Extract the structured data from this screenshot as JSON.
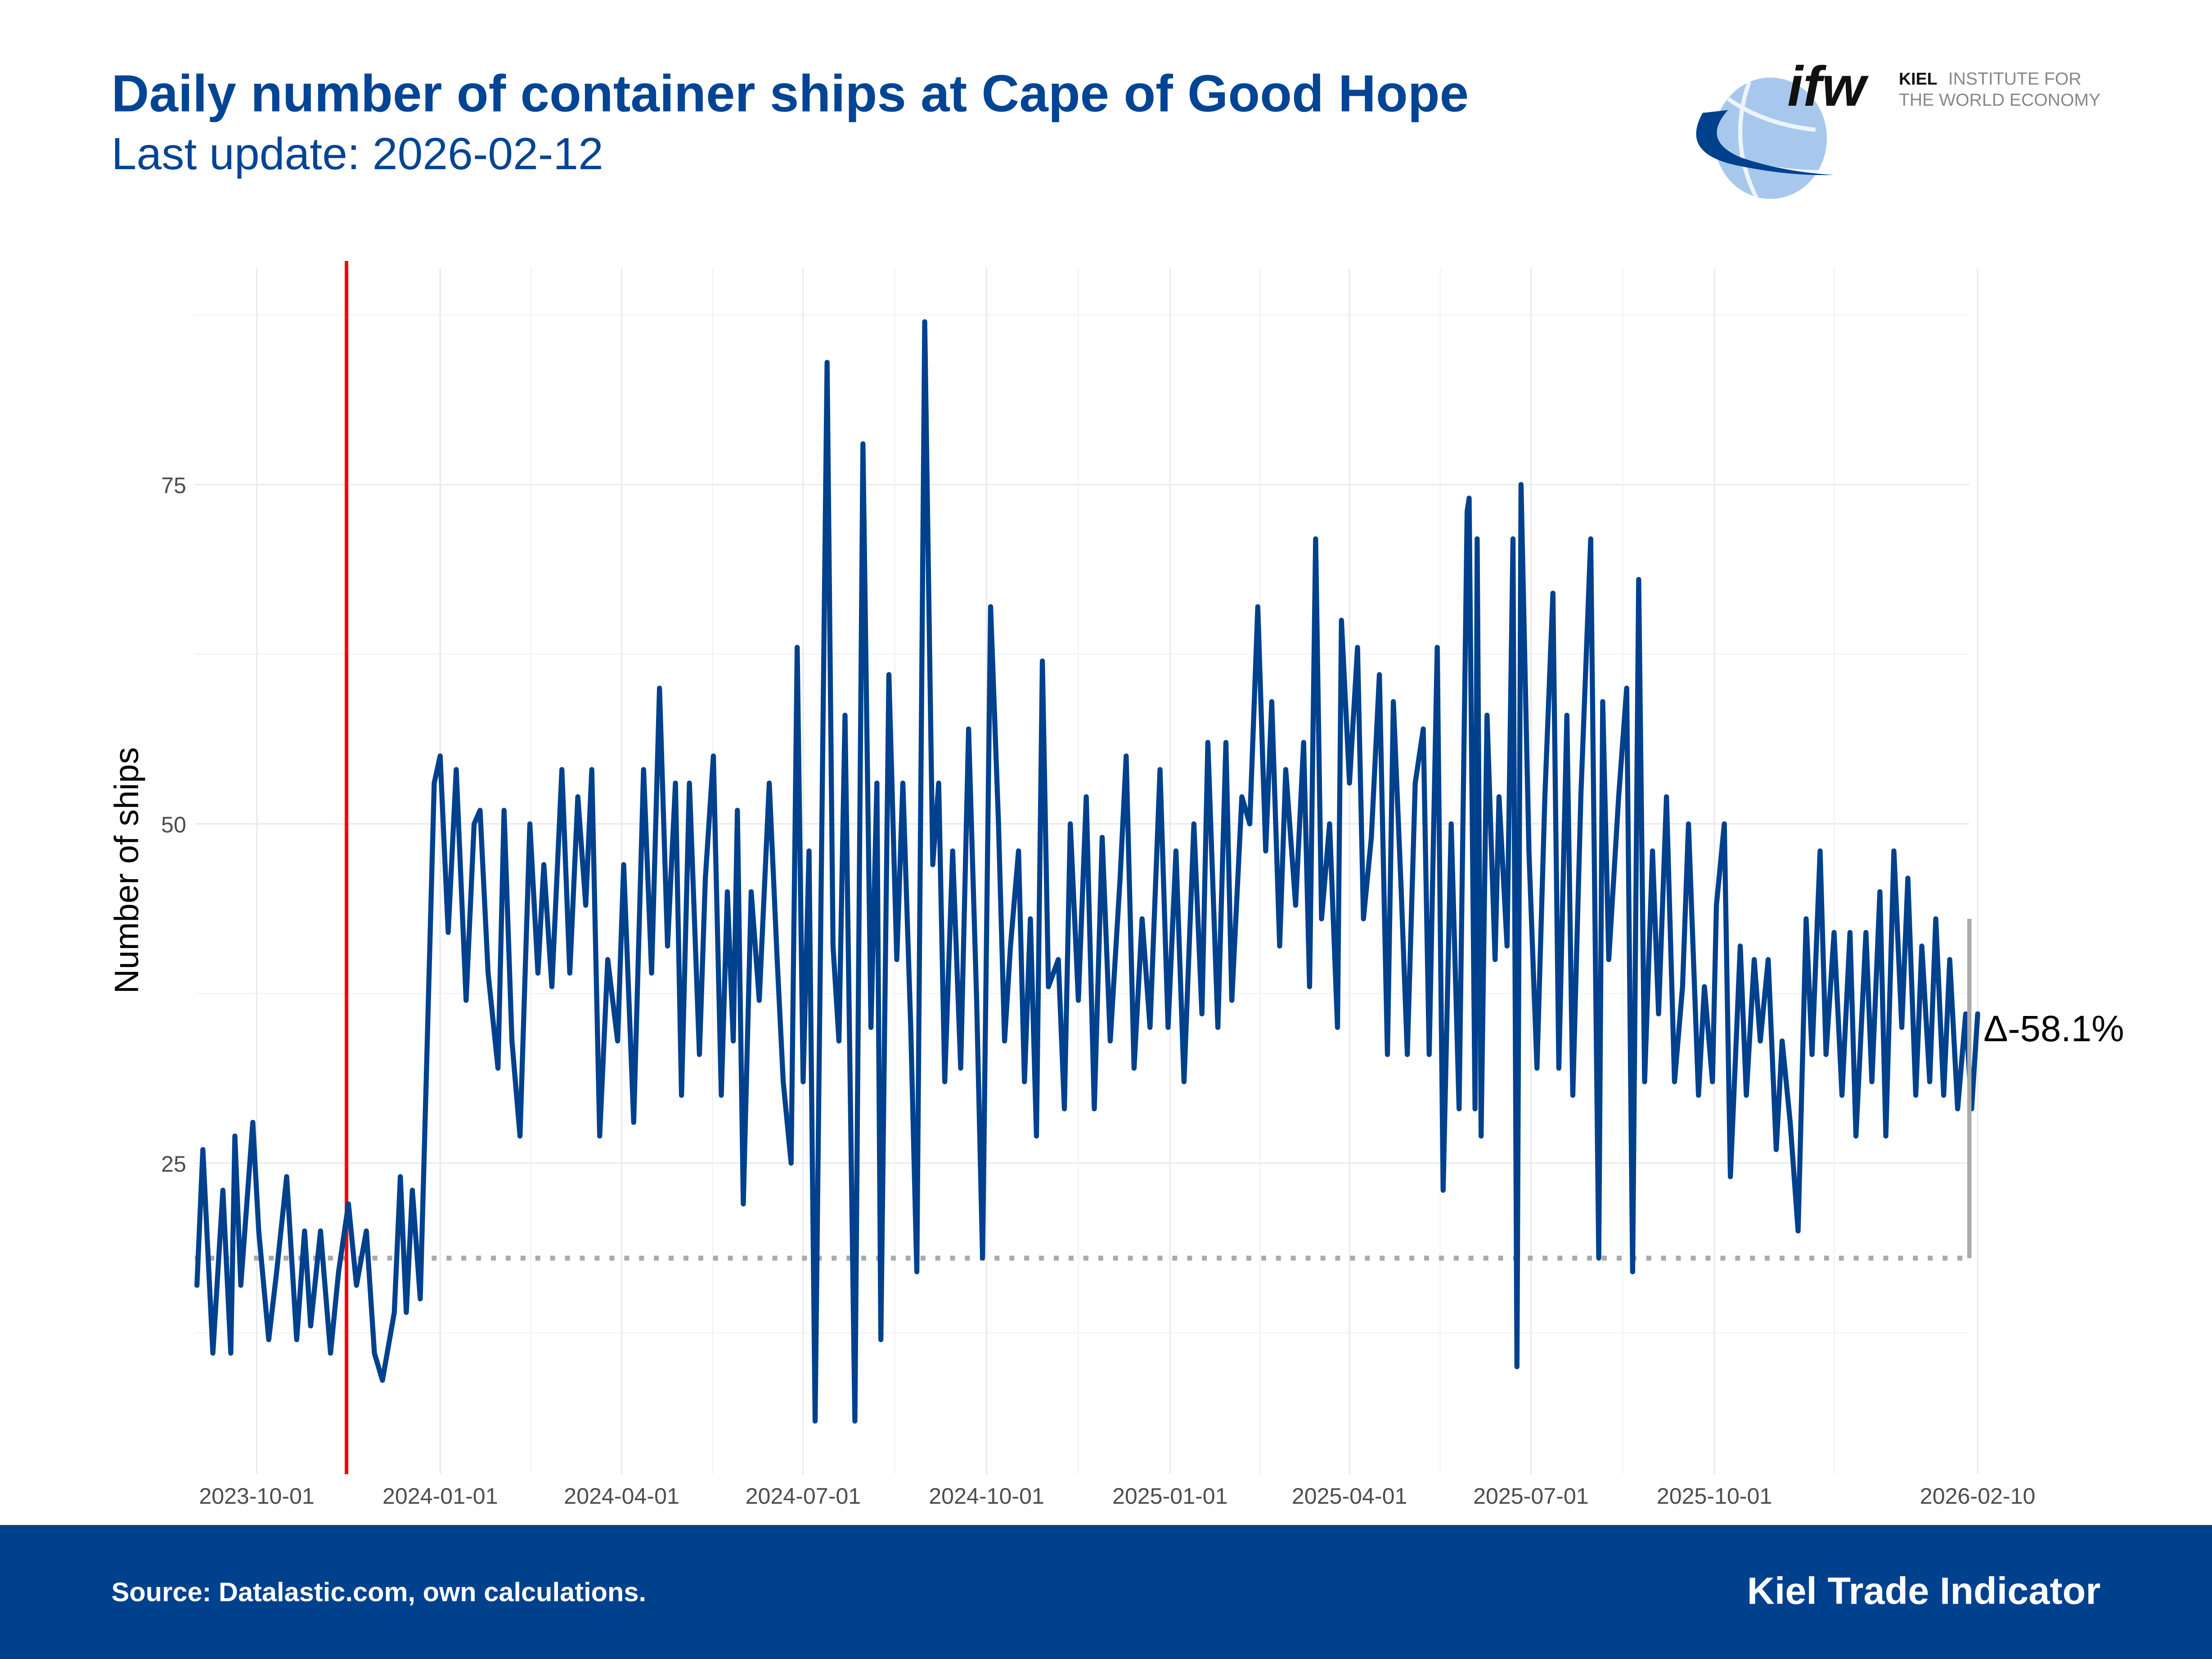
{
  "header": {
    "title": "Daily number of container ships at Cape of Good Hope",
    "subtitle": "Last update: 2026-02-12"
  },
  "logo": {
    "mark": "ifw",
    "line1_bold": "KIEL",
    "line1_rest": "INSTITUTE FOR",
    "line2": "THE WORLD ECONOMY"
  },
  "footer": {
    "source": "Source: Datalastic.com, own calculations.",
    "brand": "Kiel Trade Indicator"
  },
  "colors": {
    "series": "#00418E",
    "event_line": "#FF0000",
    "baseline": "#AAAAAA",
    "title": "#004494",
    "footer_bg": "#00418E"
  },
  "chart_data": {
    "type": "line",
    "title": "Daily number of container ships at Cape of Good Hope",
    "xlabel": "",
    "ylabel": "Number of ships",
    "x_ticks": [
      "2023-10-01",
      "2024-01-01",
      "2024-04-01",
      "2024-07-01",
      "2024-10-01",
      "2025-01-01",
      "2025-04-01",
      "2025-07-01",
      "2025-10-01",
      "2026-02-10"
    ],
    "y_ticks": [
      25,
      50,
      75
    ],
    "xlim": [
      "2023-09-01",
      "2026-02-10"
    ],
    "ylim": [
      5,
      88
    ],
    "grid": true,
    "event_line_date": "2023-11-15",
    "baseline_value": 18,
    "delta_reference_value": 43,
    "delta_label": "Δ-58.1%",
    "series": [
      {
        "points": [
          [
            "2023-09-01",
            16
          ],
          [
            "2023-09-04",
            26
          ],
          [
            "2023-09-09",
            11
          ],
          [
            "2023-09-14",
            23
          ],
          [
            "2023-09-18",
            11
          ],
          [
            "2023-09-20",
            27
          ],
          [
            "2023-09-23",
            16
          ],
          [
            "2023-09-29",
            28
          ],
          [
            "2023-10-02",
            20
          ],
          [
            "2023-10-07",
            12
          ],
          [
            "2023-10-11",
            17
          ],
          [
            "2023-10-16",
            24
          ],
          [
            "2023-10-21",
            12
          ],
          [
            "2023-10-25",
            20
          ],
          [
            "2023-10-28",
            13
          ],
          [
            "2023-11-02",
            20
          ],
          [
            "2023-11-07",
            11
          ],
          [
            "2023-11-11",
            17
          ],
          [
            "2023-11-16",
            22
          ],
          [
            "2023-11-20",
            16
          ],
          [
            "2023-11-25",
            20
          ],
          [
            "2023-11-29",
            11
          ],
          [
            "2023-12-03",
            9
          ],
          [
            "2023-12-09",
            14
          ],
          [
            "2023-12-12",
            24
          ],
          [
            "2023-12-15",
            14
          ],
          [
            "2023-12-18",
            23
          ],
          [
            "2023-12-22",
            15
          ],
          [
            "2023-12-25",
            31
          ],
          [
            "2023-12-29",
            53
          ],
          [
            "2024-01-01",
            55
          ],
          [
            "2024-01-05",
            42
          ],
          [
            "2024-01-09",
            54
          ],
          [
            "2024-01-14",
            37
          ],
          [
            "2024-01-18",
            50
          ],
          [
            "2024-01-21",
            51
          ],
          [
            "2024-01-25",
            39
          ],
          [
            "2024-01-30",
            32
          ],
          [
            "2024-02-02",
            51
          ],
          [
            "2024-02-06",
            34
          ],
          [
            "2024-02-10",
            27
          ],
          [
            "2024-02-15",
            50
          ],
          [
            "2024-02-19",
            39
          ],
          [
            "2024-02-22",
            47
          ],
          [
            "2024-02-26",
            38
          ],
          [
            "2024-03-02",
            54
          ],
          [
            "2024-03-06",
            39
          ],
          [
            "2024-03-10",
            52
          ],
          [
            "2024-03-14",
            44
          ],
          [
            "2024-03-17",
            54
          ],
          [
            "2024-03-21",
            27
          ],
          [
            "2024-03-25",
            40
          ],
          [
            "2024-03-30",
            34
          ],
          [
            "2024-04-02",
            47
          ],
          [
            "2024-04-07",
            28
          ],
          [
            "2024-04-12",
            54
          ],
          [
            "2024-04-16",
            39
          ],
          [
            "2024-04-20",
            60
          ],
          [
            "2024-04-24",
            41
          ],
          [
            "2024-04-28",
            53
          ],
          [
            "2024-05-01",
            30
          ],
          [
            "2024-05-05",
            53
          ],
          [
            "2024-05-10",
            33
          ],
          [
            "2024-05-13",
            46
          ],
          [
            "2024-05-17",
            55
          ],
          [
            "2024-05-21",
            30
          ],
          [
            "2024-05-24",
            45
          ],
          [
            "2024-05-27",
            34
          ],
          [
            "2024-05-29",
            51
          ],
          [
            "2024-06-01",
            22
          ],
          [
            "2024-06-05",
            45
          ],
          [
            "2024-06-09",
            37
          ],
          [
            "2024-06-14",
            53
          ],
          [
            "2024-06-18",
            40
          ],
          [
            "2024-06-21",
            31
          ],
          [
            "2024-06-25",
            25
          ],
          [
            "2024-06-28",
            63
          ],
          [
            "2024-07-01",
            31
          ],
          [
            "2024-07-04",
            48
          ],
          [
            "2024-07-07",
            6
          ],
          [
            "2024-07-13",
            84
          ],
          [
            "2024-07-16",
            41
          ],
          [
            "2024-07-19",
            34
          ],
          [
            "2024-07-22",
            58
          ],
          [
            "2024-07-27",
            6
          ],
          [
            "2024-07-31",
            78
          ],
          [
            "2024-08-04",
            35
          ],
          [
            "2024-08-07",
            53
          ],
          [
            "2024-08-09",
            12
          ],
          [
            "2024-08-13",
            61
          ],
          [
            "2024-08-17",
            40
          ],
          [
            "2024-08-20",
            53
          ],
          [
            "2024-08-24",
            35
          ],
          [
            "2024-08-27",
            17
          ],
          [
            "2024-08-31",
            87
          ],
          [
            "2024-09-04",
            47
          ],
          [
            "2024-09-07",
            53
          ],
          [
            "2024-09-10",
            31
          ],
          [
            "2024-09-14",
            48
          ],
          [
            "2024-09-18",
            32
          ],
          [
            "2024-09-22",
            57
          ],
          [
            "2024-09-26",
            37
          ],
          [
            "2024-09-29",
            18
          ],
          [
            "2024-10-03",
            66
          ],
          [
            "2024-10-07",
            50
          ],
          [
            "2024-10-10",
            34
          ],
          [
            "2024-10-13",
            41
          ],
          [
            "2024-10-17",
            48
          ],
          [
            "2024-10-20",
            31
          ],
          [
            "2024-10-23",
            43
          ],
          [
            "2024-10-26",
            27
          ],
          [
            "2024-10-29",
            62
          ],
          [
            "2024-11-01",
            38
          ],
          [
            "2024-11-06",
            40
          ],
          [
            "2024-11-09",
            29
          ],
          [
            "2024-11-12",
            50
          ],
          [
            "2024-11-16",
            37
          ],
          [
            "2024-11-20",
            52
          ],
          [
            "2024-11-24",
            29
          ],
          [
            "2024-11-28",
            49
          ],
          [
            "2024-12-02",
            34
          ],
          [
            "2024-12-07",
            46
          ],
          [
            "2024-12-10",
            55
          ],
          [
            "2024-12-14",
            32
          ],
          [
            "2024-12-18",
            43
          ],
          [
            "2024-12-22",
            35
          ],
          [
            "2024-12-27",
            54
          ],
          [
            "2024-12-31",
            35
          ],
          [
            "2025-01-04",
            48
          ],
          [
            "2025-01-08",
            31
          ],
          [
            "2025-01-13",
            50
          ],
          [
            "2025-01-17",
            36
          ],
          [
            "2025-01-20",
            56
          ],
          [
            "2025-01-25",
            35
          ],
          [
            "2025-01-29",
            56
          ],
          [
            "2025-02-01",
            37
          ],
          [
            "2025-02-06",
            52
          ],
          [
            "2025-02-10",
            50
          ],
          [
            "2025-02-14",
            66
          ],
          [
            "2025-02-18",
            48
          ],
          [
            "2025-02-21",
            59
          ],
          [
            "2025-02-25",
            41
          ],
          [
            "2025-02-28",
            54
          ],
          [
            "2025-03-05",
            44
          ],
          [
            "2025-03-09",
            56
          ],
          [
            "2025-03-12",
            38
          ],
          [
            "2025-03-15",
            71
          ],
          [
            "2025-03-18",
            43
          ],
          [
            "2025-03-22",
            50
          ],
          [
            "2025-03-26",
            35
          ],
          [
            "2025-03-28",
            65
          ],
          [
            "2025-04-01",
            53
          ],
          [
            "2025-04-05",
            63
          ],
          [
            "2025-04-08",
            43
          ],
          [
            "2025-04-12",
            49
          ],
          [
            "2025-04-16",
            61
          ],
          [
            "2025-04-20",
            33
          ],
          [
            "2025-04-23",
            59
          ],
          [
            "2025-04-27",
            45
          ],
          [
            "2025-04-30",
            33
          ],
          [
            "2025-05-04",
            53
          ],
          [
            "2025-05-08",
            57
          ],
          [
            "2025-05-11",
            33
          ],
          [
            "2025-05-15",
            63
          ],
          [
            "2025-05-18",
            23
          ],
          [
            "2025-05-22",
            50
          ],
          [
            "2025-05-26",
            29
          ],
          [
            "2025-05-30",
            73
          ],
          [
            "2025-05-31",
            74
          ],
          [
            "2025-06-03",
            29
          ],
          [
            "2025-06-04",
            71
          ],
          [
            "2025-06-06",
            27
          ],
          [
            "2025-06-09",
            58
          ],
          [
            "2025-06-13",
            40
          ],
          [
            "2025-06-15",
            52
          ],
          [
            "2025-06-19",
            41
          ],
          [
            "2025-06-22",
            71
          ],
          [
            "2025-06-24",
            10
          ],
          [
            "2025-06-26",
            75
          ],
          [
            "2025-06-30",
            48
          ],
          [
            "2025-07-04",
            32
          ],
          [
            "2025-07-08",
            52
          ],
          [
            "2025-07-12",
            67
          ],
          [
            "2025-07-15",
            32
          ],
          [
            "2025-07-19",
            58
          ],
          [
            "2025-07-22",
            30
          ],
          [
            "2025-07-26",
            52
          ],
          [
            "2025-07-31",
            71
          ],
          [
            "2025-08-04",
            18
          ],
          [
            "2025-08-06",
            59
          ],
          [
            "2025-08-09",
            40
          ],
          [
            "2025-08-14",
            52
          ],
          [
            "2025-08-18",
            60
          ],
          [
            "2025-08-21",
            17
          ],
          [
            "2025-08-24",
            68
          ],
          [
            "2025-08-27",
            31
          ],
          [
            "2025-08-31",
            48
          ],
          [
            "2025-09-03",
            36
          ],
          [
            "2025-09-07",
            52
          ],
          [
            "2025-09-11",
            31
          ],
          [
            "2025-09-15",
            38
          ],
          [
            "2025-09-18",
            50
          ],
          [
            "2025-09-23",
            30
          ],
          [
            "2025-09-26",
            38
          ],
          [
            "2025-09-30",
            31
          ],
          [
            "2025-10-02",
            44
          ],
          [
            "2025-10-06",
            50
          ],
          [
            "2025-10-09",
            24
          ],
          [
            "2025-10-14",
            41
          ],
          [
            "2025-10-17",
            30
          ],
          [
            "2025-10-21",
            40
          ],
          [
            "2025-10-24",
            34
          ],
          [
            "2025-10-28",
            40
          ],
          [
            "2025-11-01",
            26
          ],
          [
            "2025-11-04",
            34
          ],
          [
            "2025-11-08",
            28
          ],
          [
            "2025-11-12",
            20
          ],
          [
            "2025-11-16",
            43
          ],
          [
            "2025-11-19",
            33
          ],
          [
            "2025-11-23",
            48
          ],
          [
            "2025-11-26",
            33
          ],
          [
            "2025-11-30",
            42
          ],
          [
            "2025-12-04",
            30
          ],
          [
            "2025-12-08",
            42
          ],
          [
            "2025-12-11",
            27
          ],
          [
            "2025-12-16",
            42
          ],
          [
            "2025-12-19",
            31
          ],
          [
            "2025-12-23",
            45
          ],
          [
            "2025-12-26",
            27
          ],
          [
            "2025-12-30",
            48
          ],
          [
            "2026-01-03",
            35
          ],
          [
            "2026-01-06",
            46
          ],
          [
            "2026-01-10",
            30
          ],
          [
            "2026-01-13",
            41
          ],
          [
            "2026-01-17",
            31
          ],
          [
            "2026-01-20",
            43
          ],
          [
            "2026-01-24",
            30
          ],
          [
            "2026-01-27",
            40
          ],
          [
            "2026-01-31",
            29
          ],
          [
            "2026-02-04",
            36
          ],
          [
            "2026-02-07",
            29
          ],
          [
            "2026-02-10",
            36
          ]
        ]
      }
    ]
  }
}
